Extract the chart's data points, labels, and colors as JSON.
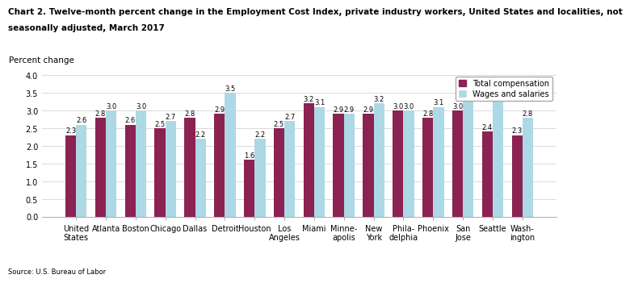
{
  "title_line1": "Chart 2. Twelve-month percent change in the Employment Cost Index, private industry workers, United States and localities, not",
  "title_line2": "seasonally adjusted, March 2017",
  "ylabel": "Percent change",
  "categories": [
    "United\nStates",
    "Atlanta",
    "Boston",
    "Chicago",
    "Dallas",
    "Detroit",
    "Houston",
    "Los\nAngeles",
    "Miami",
    "Minne-\napolis",
    "New\nYork",
    "Phila-\ndelphia",
    "Phoenix",
    "San\nJose",
    "Seattle",
    "Wash-\nington"
  ],
  "total_compensation": [
    2.3,
    2.8,
    2.6,
    2.5,
    2.8,
    2.9,
    1.6,
    2.5,
    3.2,
    2.9,
    2.9,
    3.0,
    2.8,
    3.0,
    2.4,
    2.3
  ],
  "wages_and_salaries": [
    2.6,
    3.0,
    3.0,
    2.7,
    2.2,
    3.5,
    2.2,
    2.7,
    3.1,
    2.9,
    3.2,
    3.0,
    3.1,
    3.3,
    3.6,
    2.8
  ],
  "total_comp_color": "#8B2252",
  "wages_color": "#ADD8E6",
  "ylim": [
    0,
    4.0
  ],
  "yticks": [
    0.0,
    0.5,
    1.0,
    1.5,
    2.0,
    2.5,
    3.0,
    3.5,
    4.0
  ],
  "source": "Source: U.S. Bureau of Labor",
  "legend_labels": [
    "Total compensation",
    "Wages and salaries"
  ],
  "bar_width": 0.36,
  "title_fontsize": 7.5,
  "axis_label_fontsize": 7.5,
  "tick_fontsize": 7.0,
  "value_fontsize": 6.0,
  "grid_color": "#cccccc",
  "background_color": "#ffffff"
}
